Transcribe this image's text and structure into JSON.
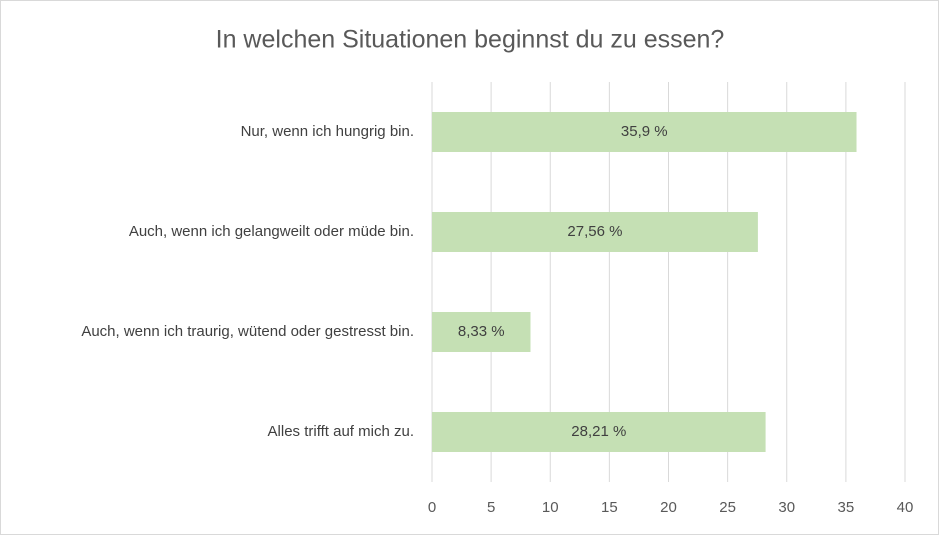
{
  "chart_data": {
    "type": "bar",
    "title": "In welchen Situationen beginnst du zu essen?",
    "categories": [
      "Nur, wenn ich hungrig bin.",
      "Auch, wenn ich gelangweilt oder müde bin.",
      "Auch, wenn ich traurig, wütend oder gestresst bin.",
      "Alles trifft auf mich zu."
    ],
    "values": [
      35.9,
      27.56,
      8.33,
      28.21
    ],
    "value_labels": [
      "35,9 %",
      "27,56 %",
      "8,33 %",
      "28,21 %"
    ],
    "color": "#c5e0b4",
    "xlim": [
      0,
      40
    ],
    "xticks": [
      0,
      5,
      10,
      15,
      20,
      25,
      30,
      35,
      40
    ],
    "grid": true
  }
}
